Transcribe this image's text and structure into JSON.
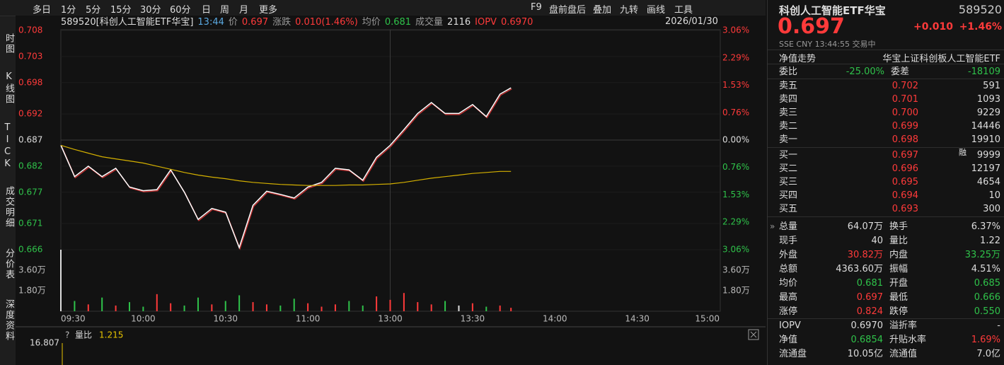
{
  "toolbar": {
    "periods": [
      "多日",
      "1分",
      "5分",
      "15分",
      "30分",
      "60分",
      "日",
      "周",
      "月",
      "更多"
    ],
    "tools": [
      "F9",
      "盘前盘后",
      "叠加",
      "九转",
      "画线",
      "工具"
    ]
  },
  "sidebar": [
    "时图",
    "K线图",
    "TICK",
    "成交明细",
    "分价表",
    "深度资料"
  ],
  "info_bar": {
    "code_name": "589520[科创人工智能ETF华宝]",
    "time": "13:44",
    "price_label": "价",
    "price": "0.697",
    "change_label": "涨跌",
    "change": "0.010(1.46%)",
    "avg_label": "均价",
    "avg": "0.681",
    "volume_label": "成交量",
    "volume": "2116",
    "iopv_label": "IOPV",
    "iopv": "0.6970",
    "date": "2026/01/30"
  },
  "chart_data": [
    {
      "type": "line",
      "x": [
        "09:30",
        "09:35",
        "09:40",
        "09:45",
        "09:50",
        "09:55",
        "10:00",
        "10:05",
        "10:10",
        "10:15",
        "10:20",
        "10:25",
        "10:30",
        "10:35",
        "10:40",
        "10:45",
        "10:50",
        "10:55",
        "11:00",
        "11:05",
        "11:10",
        "11:15",
        "11:20",
        "11:25",
        "11:30",
        "13:05",
        "13:10",
        "13:15",
        "13:20",
        "13:25",
        "13:30",
        "13:35",
        "13:40",
        "13:44"
      ],
      "series": [
        {
          "color": "#ffffff",
          "values": [
            0.686,
            0.68,
            0.682,
            0.68,
            0.6816,
            0.678,
            0.6773,
            0.6775,
            0.6813,
            0.677,
            0.6718,
            0.6739,
            0.6732,
            0.6664,
            0.6745,
            0.6772,
            0.6766,
            0.6759,
            0.678,
            0.6789,
            0.6816,
            0.6813,
            0.6793,
            0.6837,
            0.686,
            0.689,
            0.6921,
            0.6942,
            0.6921,
            0.6921,
            0.6938,
            0.6915,
            0.6958,
            0.697
          ]
        },
        {
          "color": "#d4b000",
          "values": [
            0.686,
            0.6852,
            0.6845,
            0.6838,
            0.6834,
            0.683,
            0.6826,
            0.682,
            0.6814,
            0.6808,
            0.6803,
            0.6799,
            0.6796,
            0.6792,
            0.6789,
            0.6787,
            0.6785,
            0.6784,
            0.6783,
            0.6783,
            0.6783,
            0.6784,
            0.6784,
            0.6785,
            0.6786,
            0.6789,
            0.6793,
            0.6797,
            0.68,
            0.6803,
            0.6806,
            0.6808,
            0.681,
            0.681
          ]
        }
      ],
      "ylim": [
        0.666,
        0.708
      ],
      "yticks": [
        0.708,
        0.703,
        0.698,
        0.692,
        0.687,
        0.682,
        0.677,
        0.671,
        0.666
      ],
      "y2lim": [
        -3.06,
        3.06
      ],
      "y2ticks": [
        {
          "value": 3.06,
          "label": "3.06%"
        },
        {
          "value": 2.29,
          "label": "2.29%"
        },
        {
          "value": 1.53,
          "label": "1.53%"
        },
        {
          "value": 0.76,
          "label": "0.76%"
        },
        {
          "value": 0,
          "label": "0.00%"
        },
        {
          "value": -0.76,
          "label": "0.76%"
        },
        {
          "value": -1.53,
          "label": "1.53%"
        },
        {
          "value": -2.29,
          "label": "2.29%"
        },
        {
          "value": -3.06,
          "label": "3.06%"
        }
      ],
      "xticks": [
        "09:30",
        "10:00",
        "10:30",
        "11:00",
        "13:00",
        "13:30",
        "14:00",
        "14:30",
        "15:00"
      ]
    },
    {
      "type": "bar",
      "x": [
        "09:30",
        "09:35",
        "09:40",
        "09:45",
        "09:50",
        "09:55",
        "10:00",
        "10:05",
        "10:10",
        "10:15",
        "10:20",
        "10:25",
        "10:30",
        "10:35",
        "10:40",
        "10:45",
        "10:50",
        "10:55",
        "11:00",
        "11:05",
        "11:10",
        "11:15",
        "11:20",
        "11:25",
        "11:30",
        "13:05",
        "13:10",
        "13:15",
        "13:20",
        "13:25",
        "13:30",
        "13:35",
        "13:40",
        "13:44"
      ],
      "values": [
        54000,
        9000,
        6000,
        12000,
        5000,
        8000,
        4000,
        15000,
        7000,
        5000,
        12000,
        6000,
        9000,
        14000,
        8000,
        6000,
        5000,
        11000,
        7000,
        4000,
        6000,
        9000,
        5000,
        13000,
        10000,
        16000,
        8000,
        6000,
        9000,
        5000,
        7000,
        4000,
        5000,
        3000
      ],
      "ylim": [
        0,
        54000
      ],
      "yticks": [
        {
          "value": 36000,
          "label": "3.60万"
        },
        {
          "value": 18000,
          "label": "1.80万"
        }
      ]
    },
    {
      "type": "line",
      "help": "?",
      "name": "量比",
      "value": "1.215",
      "yticks": [
        16.807
      ]
    }
  ],
  "quote": {
    "name": "科创人工智能ETF华宝",
    "code": "589520",
    "price": "0.697",
    "change": "+0.010",
    "change_pct": "+1.46%",
    "exchange": "SSE",
    "currency": "CNY",
    "time": "13:44:55",
    "status": "交易中",
    "nav_link": "净值走势",
    "full_name": "华宝上证科创板人工智能ETF"
  },
  "order_book": {
    "ratio_label": "委比",
    "ratio": "-25.00%",
    "diff_label": "委差",
    "diff": "-18109",
    "margin": "融",
    "asks": [
      [
        "卖五",
        "0.702",
        "591"
      ],
      [
        "卖四",
        "0.701",
        "1093"
      ],
      [
        "卖三",
        "0.700",
        "9229"
      ],
      [
        "卖二",
        "0.699",
        "14446"
      ],
      [
        "卖一",
        "0.698",
        "19910"
      ]
    ],
    "bids": [
      [
        "买一",
        "0.697",
        "9999"
      ],
      [
        "买二",
        "0.696",
        "12197"
      ],
      [
        "买三",
        "0.695",
        "4654"
      ],
      [
        "买四",
        "0.694",
        "10"
      ],
      [
        "买五",
        "0.693",
        "300"
      ]
    ]
  },
  "stats": [
    [
      "总量",
      "64.07万",
      "换手",
      "6.37%"
    ],
    [
      "现手",
      "40",
      "量比",
      "1.22"
    ],
    [
      "外盘",
      "30.82万",
      "内盘",
      "33.25万"
    ],
    [
      "总额",
      "4363.60万",
      "振幅",
      "4.51%"
    ],
    [
      "均价",
      "0.681",
      "开盘",
      "0.685"
    ],
    [
      "最高",
      "0.697",
      "最低",
      "0.666"
    ],
    [
      "涨停",
      "0.824",
      "跌停",
      "0.550"
    ]
  ],
  "fund": [
    [
      "IOPV",
      "0.6970",
      "溢折率",
      "-"
    ],
    [
      "净值",
      "0.6854",
      "升贴水率",
      "1.69%"
    ],
    [
      "流通盘",
      "10.05亿",
      "流通值",
      "7.0亿"
    ]
  ]
}
